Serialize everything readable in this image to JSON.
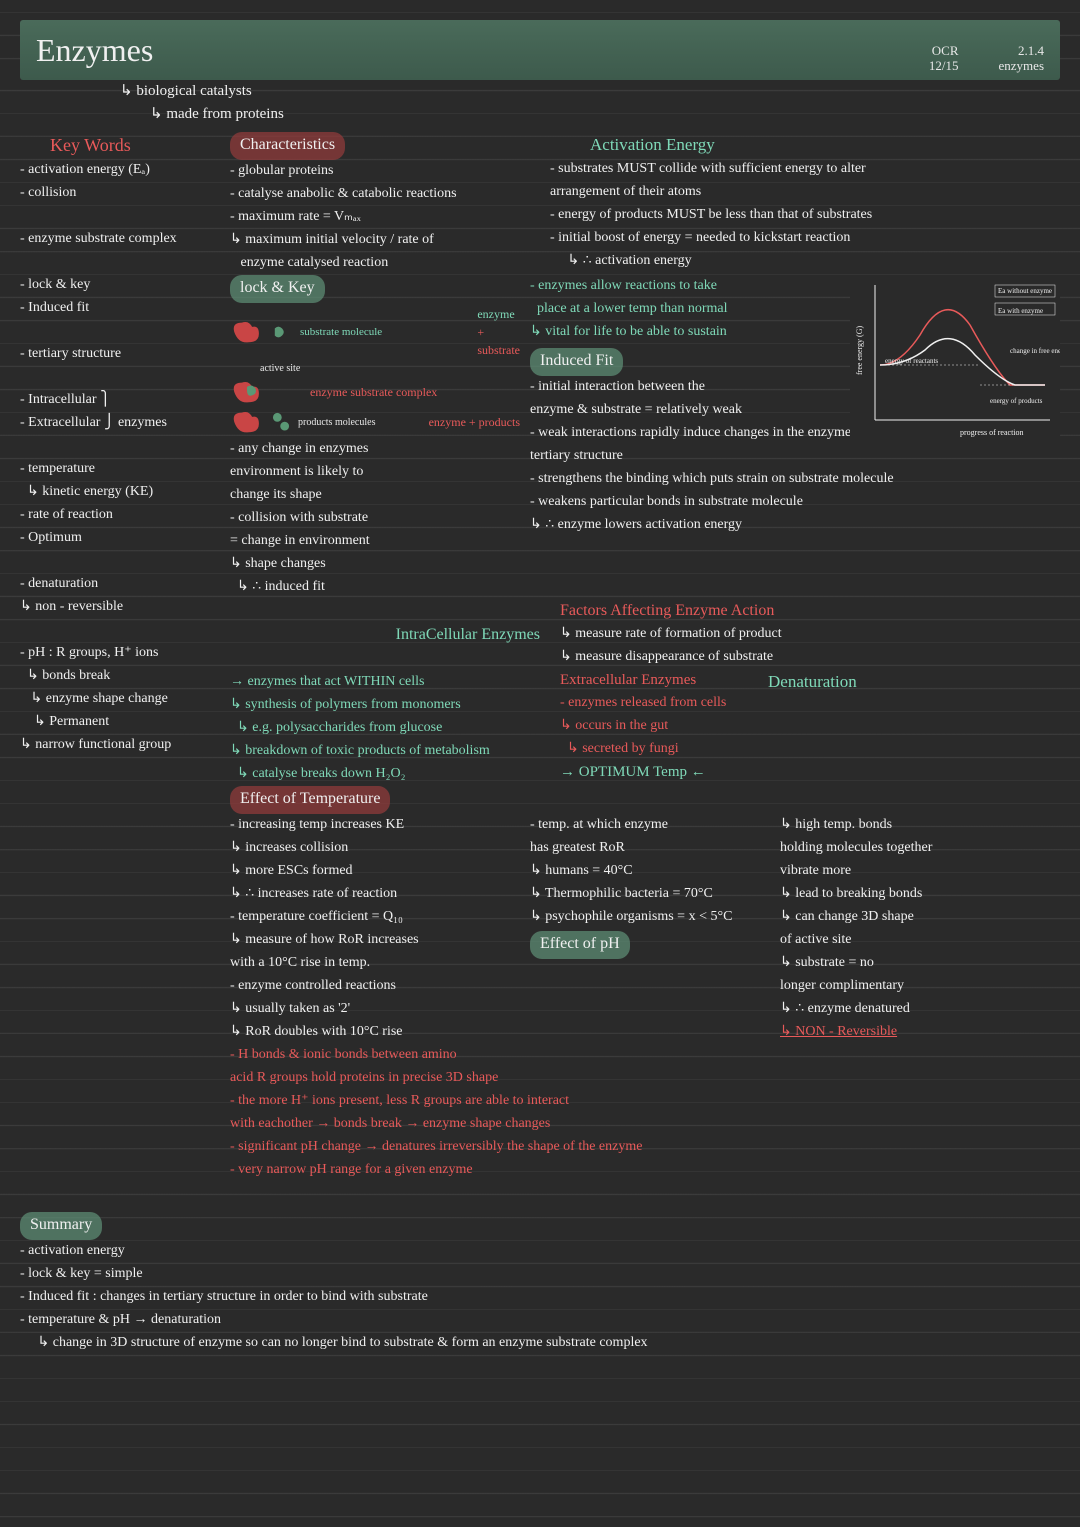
{
  "header": {
    "title": "Enzymes",
    "meta_left_1": "OCR",
    "meta_left_2": "12/15",
    "meta_right_1": "2.1.4",
    "meta_right_2": "enzymes"
  },
  "intro": {
    "l1": "biological catalysts",
    "l2": "made from proteins"
  },
  "keywords_heading": "Key Words",
  "keywords": [
    "- activation energy (Eₐ)",
    "- collision",
    "",
    "- enzyme substrate complex",
    "",
    "- lock & key",
    "- Induced fit",
    "",
    "- tertiary structure",
    "",
    "- Intracellular ⎫",
    "- Extracellular ⎭ enzymes",
    "",
    "- temperature",
    "  ↳ kinetic energy (KE)",
    "- rate of reaction",
    "- Optimum",
    "",
    "- denaturation",
    "↳ non - reversible",
    "",
    "- pH : R groups, H⁺ ions",
    "  ↳ bonds break",
    "   ↳ enzyme shape change",
    "    ↳ Permanent",
    "↳ narrow functional group"
  ],
  "characteristics_heading": "Characteristics",
  "characteristics": [
    "- globular proteins",
    "- catalyse anabolic & catabolic reactions",
    "- maximum rate = Vₘₐₓ",
    "↳ maximum initial velocity / rate of",
    "   enzyme catalysed reaction"
  ],
  "activation_heading": "Activation Energy",
  "activation": [
    "- substrates MUST collide with sufficient energy to alter",
    "arrangement of their atoms",
    "- energy of products MUST be less than that of substrates",
    "- initial boost of energy = needed to kickstart reaction",
    "     ↳ ∴ activation energy"
  ],
  "lockkey_heading": "lock & Key",
  "lockkey_labels": {
    "enzyme": "enzyme",
    "plus": "+",
    "substrate": "substrate",
    "active_site": "active site",
    "substrate_molecule": "substrate molecule",
    "complex": "enzyme substrate complex",
    "products": "products molecules",
    "ep": "enzyme + products"
  },
  "lockkey_text": [
    "- enzymes allow reactions to take",
    "  place at a lower temp than normal",
    "↳ vital for life to be able to sustain"
  ],
  "graph": {
    "free_energy": "free energy (G)",
    "progress": "progress of reaction",
    "ea_without": "Ea without enzyme",
    "ea_with": "Ea with enzyme",
    "e_reactants": "energy of reactants",
    "e_products": "energy of products",
    "change": "change in free energy ΔG",
    "curve1_color": "#e85a5a",
    "curve2_color": "#f0f0f0",
    "axis_color": "#f0f0f0",
    "bg": "#2a2a2a"
  },
  "lockkey_below": [
    "- any change in enzymes",
    "environment is likely to",
    "change its shape",
    "- collision with substrate",
    "= change in environment",
    "↳ shape changes",
    "  ↳ ∴ induced fit"
  ],
  "induced_heading": "Induced Fit",
  "induced": [
    "- initial interaction between the",
    "enzyme & substrate = relatively weak",
    "- weak interactions rapidly induce changes in the enzymes",
    "tertiary structure",
    "- strengthens the binding which puts strain on substrate molecule",
    "- weakens particular bonds in substrate molecule",
    "↳ ∴ enzyme lowers activation energy"
  ],
  "intra_heading": "IntraCellular Enzymes",
  "factors_heading": "Factors Affecting Enzyme Action",
  "factors": [
    "↳ measure rate of formation of product",
    "↳ measure disappearance of substrate"
  ],
  "intra": [
    "→ enzymes that act WITHIN cells",
    "↳ synthesis of polymers from monomers",
    "  ↳ e.g. polysaccharides from glucose",
    "↳ breakdown of toxic products of metabolism",
    "  ↳ catalyse breaks down H₂O₂"
  ],
  "extra_heading": "Extracellular Enzymes",
  "extra": [
    "- enzymes released from cells",
    "↳ occurs in the gut",
    "  ↳ secreted by fungi"
  ],
  "denat_heading": "Denaturation",
  "denat": [
    "↳ high temp. bonds",
    "holding molecules together",
    "vibrate more",
    "↳ lead to breaking bonds",
    "↳ can change 3D shape",
    "of active site",
    "↳ substrate = no",
    "longer complimentary",
    "↳ ∴ enzyme denatured",
    "↳ NON - Reversible"
  ],
  "effect_temp_heading": "Effect of Temperature",
  "optimum_label": "→ OPTIMUM Temp ←",
  "temp": [
    "- increasing temp increases KE",
    "↳ increases collision",
    "↳ more ESCs formed",
    "↳ ∴ increases rate of reaction",
    "- temperature coefficient = Q₁₀",
    "↳ measure of how RoR increases",
    "with a 10°C rise in temp.",
    "- enzyme controlled reactions",
    "↳ usually taken as '2'",
    "↳ RoR doubles with 10°C rise"
  ],
  "optimum": [
    "- temp. at which enzyme",
    "has greatest RoR",
    "↳ humans = 40°C",
    "↳ Thermophilic bacteria = 70°C",
    "↳ psychophile organisms = x < 5°C"
  ],
  "effect_ph_heading": "Effect of pH",
  "ph": [
    "- H bonds & ionic bonds between amino",
    "acid R groups hold proteins in precise 3D shape",
    "- the more H⁺ ions present, less R groups are able to interact",
    "with eachother → bonds break → enzyme shape changes",
    "- significant pH change → denatures irreversibly the shape of the enzyme",
    "- very narrow pH range for a given enzyme"
  ],
  "summary_heading": "Summary",
  "summary": [
    "- activation energy",
    "- lock & key = simple",
    "- Induced fit : changes in tertiary structure in order to bind with substrate",
    "- temperature & pH → denaturation",
    "     ↳ change in 3D structure of enzyme so can no longer bind to substrate & form an enzyme substrate complex"
  ],
  "colors": {
    "red": "#e85a5a",
    "green": "#7fd9b8",
    "white": "#f0f0f0",
    "bg": "#2a2a2a",
    "enzyme_blob": "#c94545",
    "substrate_blob": "#5a9875"
  }
}
